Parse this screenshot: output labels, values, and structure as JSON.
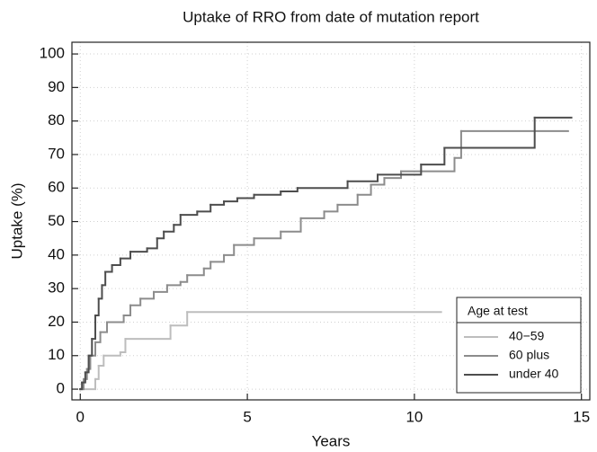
{
  "chart_data": {
    "type": "line",
    "step": "post",
    "title": "Uptake of RRO from date of mutation report",
    "x_label": "Years",
    "y_label": "Uptake (%)",
    "xlim": [
      -0.25,
      15.25
    ],
    "ylim": [
      -3.2,
      103.5
    ],
    "xticks": [
      0,
      5,
      10,
      15
    ],
    "yticks": [
      0,
      10,
      20,
      30,
      40,
      50,
      60,
      70,
      80,
      90,
      100
    ],
    "grid": true,
    "legend_title": "Age at test",
    "legend_position": "lower right",
    "series": [
      {
        "name": "40−59",
        "color": "#bdbdbd",
        "x": [
          0,
          0.45,
          0.55,
          0.7,
          1.2,
          1.35,
          2.7,
          3.2,
          10.8
        ],
        "values": [
          0,
          3,
          7,
          10,
          11,
          15,
          19,
          23,
          23
        ]
      },
      {
        "name": "60 plus",
        "color": "#8c8c8c",
        "x": [
          0,
          0.1,
          0.2,
          0.3,
          0.45,
          0.6,
          0.8,
          1.3,
          1.5,
          1.8,
          2.2,
          2.6,
          3.0,
          3.2,
          3.7,
          3.9,
          4.3,
          4.6,
          5.2,
          6.0,
          6.6,
          7.3,
          7.7,
          8.3,
          8.7,
          9.1,
          9.6,
          11.2,
          11.4,
          14.6
        ],
        "values": [
          0,
          3,
          6,
          10,
          14,
          17,
          20,
          22,
          25,
          27,
          29,
          31,
          32,
          34,
          36,
          38,
          40,
          43,
          45,
          47,
          51,
          53,
          55,
          58,
          61,
          63,
          65,
          69,
          77,
          77
        ]
      },
      {
        "name": "under 40",
        "color": "#4d4d4d",
        "x": [
          0,
          0.05,
          0.15,
          0.25,
          0.35,
          0.45,
          0.55,
          0.65,
          0.75,
          0.95,
          1.2,
          1.5,
          2.0,
          2.3,
          2.5,
          2.8,
          3.0,
          3.5,
          3.9,
          4.3,
          4.7,
          5.2,
          6.0,
          6.5,
          8.0,
          8.9,
          10.2,
          10.9,
          13.6,
          14.7
        ],
        "values": [
          0,
          2,
          5,
          10,
          15,
          22,
          27,
          31,
          35,
          37,
          39,
          41,
          42,
          45,
          47,
          49,
          52,
          53,
          55,
          56,
          57,
          58,
          59,
          60,
          62,
          64,
          67,
          72,
          81,
          81
        ]
      }
    ]
  }
}
